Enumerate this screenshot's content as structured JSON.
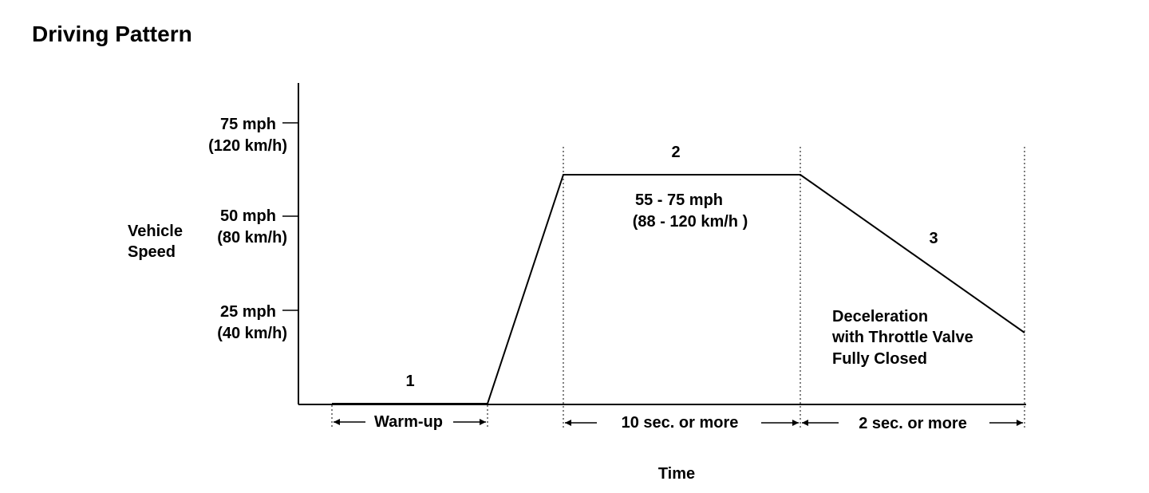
{
  "title": "Driving Pattern",
  "y_axis": {
    "label_line1": "Vehicle",
    "label_line2": "Speed",
    "ticks": [
      {
        "mph": "75 mph",
        "kmh": "(120 km/h)"
      },
      {
        "mph": "50 mph",
        "kmh": "(80 km/h)"
      },
      {
        "mph": "25 mph",
        "kmh": "(40 km/h)"
      }
    ]
  },
  "x_axis": {
    "label": "Time"
  },
  "phases": [
    {
      "number": "1",
      "duration": "Warm-up"
    },
    {
      "number": "2",
      "speed_line1": "55 - 75 mph",
      "speed_line2": "(88 - 120 km/h )",
      "duration": "10 sec. or more"
    },
    {
      "number": "3",
      "note_line1": "Deceleration",
      "note_line2": "with Throttle Valve",
      "note_line3": "Fully Closed",
      "duration": "2 sec. or more"
    }
  ]
}
